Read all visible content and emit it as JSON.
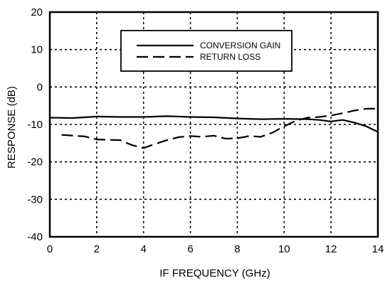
{
  "chart_data": {
    "type": "line",
    "xlabel": "IF FREQUENCY (GHz)",
    "ylabel": "RESPONSE (dB)",
    "xlim": [
      0,
      14
    ],
    "ylim": [
      -40,
      20
    ],
    "xticks": [
      0,
      2,
      4,
      6,
      8,
      10,
      12,
      14
    ],
    "yticks": [
      20,
      10,
      0,
      -10,
      -20,
      -30,
      -40
    ],
    "grid": true,
    "legend_position": "top-center",
    "series": [
      {
        "name": "CONVERSION GAIN",
        "style": "solid",
        "x": [
          0,
          1,
          2,
          3,
          4,
          5,
          6,
          7,
          8,
          9,
          10,
          11,
          11.5,
          12,
          12.5,
          13,
          13.5,
          14
        ],
        "y": [
          -8.2,
          -8.3,
          -7.9,
          -8.0,
          -8.0,
          -7.8,
          -8.0,
          -8.1,
          -8.4,
          -8.6,
          -8.5,
          -8.6,
          -8.8,
          -9.2,
          -8.8,
          -9.5,
          -10.5,
          -12.0
        ]
      },
      {
        "name": "RETURN LOSS",
        "style": "dashed",
        "x": [
          0.5,
          1.5,
          2,
          3,
          3.5,
          4,
          4.5,
          5,
          5.5,
          6,
          6.5,
          7,
          7.5,
          8,
          8.5,
          9,
          9.5,
          10,
          10.5,
          11,
          11.5,
          12,
          12.5,
          13,
          13.5,
          14
        ],
        "y": [
          -12.8,
          -13.2,
          -14.0,
          -14.2,
          -15.5,
          -16.3,
          -15.2,
          -14.2,
          -13.4,
          -13.1,
          -13.3,
          -13.0,
          -13.8,
          -13.7,
          -13.1,
          -13.3,
          -12.2,
          -10.5,
          -9.0,
          -8.2,
          -8.0,
          -7.6,
          -7.0,
          -6.3,
          -5.8,
          -5.8
        ]
      }
    ]
  }
}
